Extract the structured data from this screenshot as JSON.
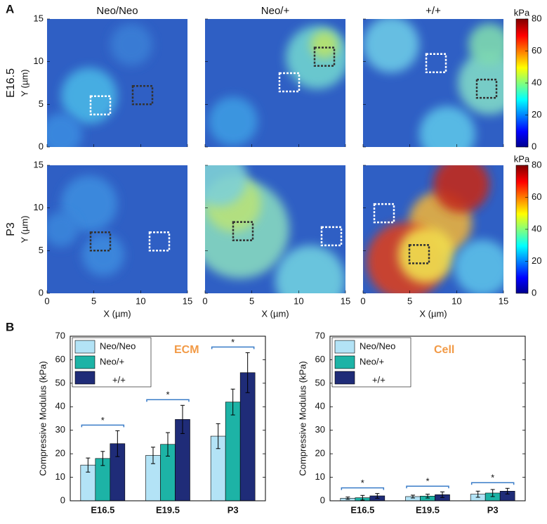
{
  "panel_labels": [
    "A",
    "B"
  ],
  "chart_data": [
    {
      "type": "heatmap",
      "columns": [
        "Neo/Neo",
        "Neo/+",
        "+/+"
      ],
      "rows": [
        "E16.5",
        "P3"
      ],
      "xlabel": "X (µm)",
      "ylabel": "Y (µm)",
      "xlim": [
        0,
        15
      ],
      "ylim": [
        0,
        15
      ],
      "xticks": [
        0,
        5,
        10,
        15
      ],
      "yticks": [
        0,
        5,
        10,
        15
      ],
      "colorbar": {
        "label": "kPa",
        "lim": [
          0,
          80
        ],
        "ticks": [
          0,
          20,
          40,
          60,
          80
        ]
      }
    },
    {
      "type": "bar",
      "title": "ECM",
      "title_color": "#f29a46",
      "ylabel": "Compressive Modulus (kPa)",
      "categories": [
        "E16.5",
        "E19.5",
        "P3"
      ],
      "ylim": [
        0,
        70
      ],
      "yticks": [
        0,
        10,
        20,
        30,
        40,
        50,
        60,
        70
      ],
      "series": [
        {
          "name": "Neo/Neo",
          "color": "#b3e3f6",
          "values": [
            15.2,
            19.3,
            27.5
          ],
          "errors": [
            3,
            3.5,
            5.3
          ]
        },
        {
          "name": "Neo/+",
          "color": "#1db3a6",
          "values": [
            18,
            24,
            42
          ],
          "errors": [
            3,
            5,
            5.5
          ]
        },
        {
          "name": "+/+",
          "color": "#1f2c78",
          "values": [
            24.3,
            34.6,
            54.5
          ],
          "errors": [
            5.5,
            6,
            8.5
          ]
        }
      ],
      "annotations": [
        "*",
        "*",
        "*"
      ]
    },
    {
      "type": "bar",
      "title": "Cell",
      "title_color": "#f29a46",
      "ylabel": "Compressive Modulus (kPa)",
      "categories": [
        "E16.5",
        "E19.5",
        "P3"
      ],
      "ylim": [
        0,
        70
      ],
      "yticks": [
        0,
        10,
        20,
        30,
        40,
        50,
        60,
        70
      ],
      "series": [
        {
          "name": "Neo/Neo",
          "color": "#b3e3f6",
          "values": [
            1.1,
            1.8,
            2.8
          ],
          "errors": [
            0.5,
            0.6,
            1.3
          ]
        },
        {
          "name": "Neo/+",
          "color": "#1db3a6",
          "values": [
            1.3,
            2,
            3.3
          ],
          "errors": [
            1,
            0.8,
            1.5
          ]
        },
        {
          "name": "+/+",
          "color": "#1f2c78",
          "values": [
            2.1,
            2.6,
            4.1
          ],
          "errors": [
            1,
            1.2,
            1.2
          ]
        }
      ],
      "annotations": [
        "*",
        "*",
        "*"
      ]
    }
  ]
}
